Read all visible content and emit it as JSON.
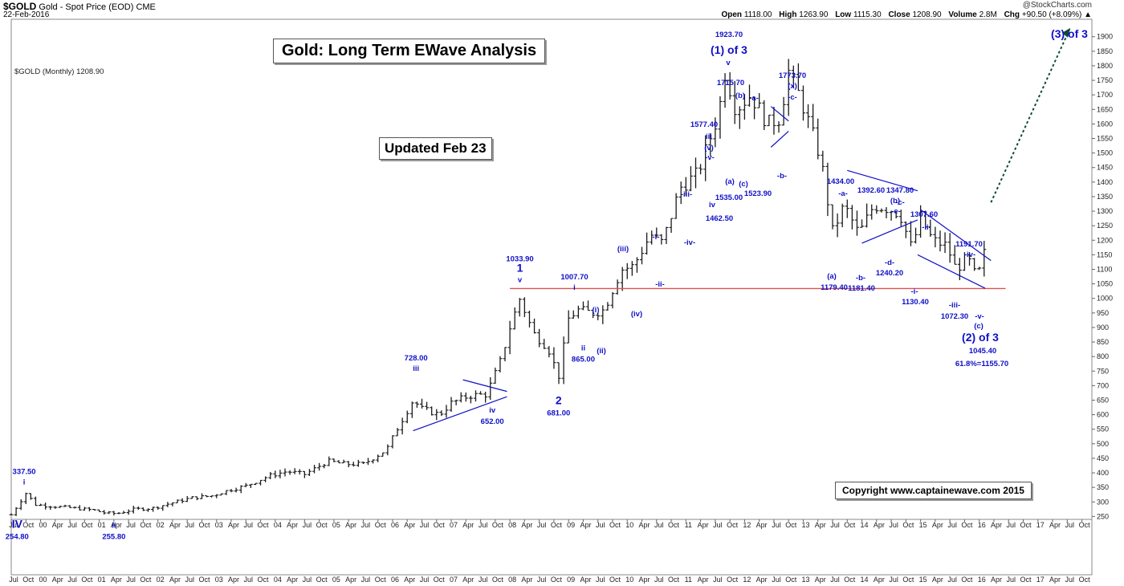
{
  "header": {
    "symbol": "$GOLD",
    "description": "Gold - Spot Price (EOD)",
    "exchange": "CME",
    "date": "22-Feb-2016",
    "watermark": "@StockCharts.com",
    "open_label": "Open",
    "open": "1118.00",
    "high_label": "High",
    "high": "1263.90",
    "low_label": "Low",
    "low": "1115.30",
    "close_label": "Close",
    "close": "1208.90",
    "volume_label": "Volume",
    "volume": "2.8M",
    "chg_label": "Chg",
    "chg": "+90.50 (+8.09%)",
    "chg_arrow": "▲"
  },
  "legend": "$GOLD (Monthly) 1208.90",
  "title_box": "Gold: Long Term EWave Analysis",
  "update_box": "Updated Feb 23",
  "copyright": "Copyright   www.captainewave.com 2015",
  "colors": {
    "price": "#1a1a1a",
    "annotation": "#1010c8",
    "support": "#e05050",
    "arrow": "#0d4d2e"
  },
  "chart_data": {
    "type": "ohlc",
    "title": "Gold: Long Term EWave Analysis",
    "ylabel": "",
    "ylim": [
      240,
      1960
    ],
    "y_ticks": [
      250,
      300,
      350,
      400,
      450,
      500,
      550,
      600,
      650,
      700,
      750,
      800,
      850,
      900,
      950,
      1000,
      1050,
      1100,
      1150,
      1200,
      1250,
      1300,
      1350,
      1400,
      1450,
      1500,
      1550,
      1600,
      1650,
      1700,
      1750,
      1800,
      1850,
      1900
    ],
    "x_axis_top": [
      "Jul",
      "Oct",
      "00",
      "Apr",
      "Jul",
      "Oct",
      "01",
      "Apr",
      "Jul",
      "Oct",
      "02",
      "Apr",
      "Jul",
      "Oct",
      "03",
      "Apr",
      "Jul",
      "Oct",
      "04",
      "Apr",
      "Jul",
      "Oct",
      "05",
      "Apr",
      "Jul",
      "Oct",
      "06",
      "Apr",
      "Jul",
      "Oct",
      "07",
      "Apr",
      "Jul",
      "Oct",
      "08",
      "Apr",
      "Jul",
      "Oct",
      "09",
      "Apr",
      "Jul",
      "Oct",
      "10",
      "Apr",
      "Jul",
      "Oct",
      "11",
      "Apr",
      "Jul",
      "Oct",
      "12",
      "Apr",
      "Jul",
      "Oct",
      "13",
      "Apr",
      "Jul",
      "Oct",
      "14",
      "Apr",
      "Jul",
      "Oct",
      "15",
      "Apr",
      "Jul",
      "Oct",
      "16",
      "Apr",
      "Jul",
      "Oct",
      "17",
      "Apr",
      "Jul",
      "Oct"
    ],
    "x_axis_bottom": [
      "Jul",
      "Oct",
      "00",
      "Apr",
      "Jul",
      "Oct",
      "01",
      "Apr",
      "Jul",
      "Oct",
      "02",
      "Apr",
      "Jul",
      "Oct",
      "03",
      "Apr",
      "Jul",
      "Oct",
      "04",
      "Apr",
      "Jul",
      "Oct",
      "05",
      "Apr",
      "Jul",
      "Oct",
      "06",
      "Apr",
      "Jul",
      "Oct",
      "07",
      "Apr",
      "Jul",
      "Oct",
      "08",
      "Apr",
      "Jul",
      "Oct",
      "09",
      "Apr",
      "Jul",
      "Oct",
      "10",
      "Apr",
      "Jul",
      "Oct",
      "11",
      "Apr",
      "Jul",
      "Oct",
      "12",
      "Apr",
      "Jul",
      "Oct",
      "13",
      "Apr",
      "Jul",
      "Oct",
      "14",
      "Apr",
      "Jul",
      "Oct",
      "15",
      "Apr",
      "Jul",
      "Oct",
      "16",
      "Apr",
      "Jul",
      "Oct",
      "17",
      "Apr",
      "Jul",
      "Oct"
    ],
    "x_range_years": [
      1999.5,
      2017.92
    ],
    "series_points": [
      [
        1999.5,
        256
      ],
      [
        1999.75,
        330
      ],
      [
        1999.92,
        290
      ],
      [
        2000.5,
        280
      ],
      [
        2000.9,
        272
      ],
      [
        2001.1,
        262
      ],
      [
        2001.3,
        260
      ],
      [
        2001.6,
        275
      ],
      [
        2001.9,
        278
      ],
      [
        2002.3,
        300
      ],
      [
        2002.6,
        315
      ],
      [
        2002.9,
        320
      ],
      [
        2003.2,
        340
      ],
      [
        2003.5,
        355
      ],
      [
        2003.9,
        390
      ],
      [
        2004.2,
        405
      ],
      [
        2004.5,
        395
      ],
      [
        2004.9,
        440
      ],
      [
        2005.2,
        430
      ],
      [
        2005.5,
        430
      ],
      [
        2005.9,
        480
      ],
      [
        2006.1,
        560
      ],
      [
        2006.35,
        650
      ],
      [
        2006.5,
        620
      ],
      [
        2006.8,
        600
      ],
      [
        2007.0,
        640
      ],
      [
        2007.3,
        665
      ],
      [
        2007.6,
        670
      ],
      [
        2007.85,
        790
      ],
      [
        2008.0,
        900
      ],
      [
        2008.17,
        1000
      ],
      [
        2008.4,
        880
      ],
      [
        2008.65,
        830
      ],
      [
        2008.83,
        730
      ],
      [
        2009.0,
        930
      ],
      [
        2009.15,
        960
      ],
      [
        2009.4,
        950
      ],
      [
        2009.6,
        960
      ],
      [
        2009.9,
        1100
      ],
      [
        2010.1,
        1110
      ],
      [
        2010.4,
        1220
      ],
      [
        2010.6,
        1190
      ],
      [
        2010.9,
        1380
      ],
      [
        2011.2,
        1430
      ],
      [
        2011.55,
        1630
      ],
      [
        2011.67,
        1780
      ],
      [
        2011.85,
        1650
      ],
      [
        2012.1,
        1700
      ],
      [
        2012.4,
        1600
      ],
      [
        2012.6,
        1620
      ],
      [
        2012.75,
        1780
      ],
      [
        2012.95,
        1690
      ],
      [
        2013.1,
        1600
      ],
      [
        2013.3,
        1480
      ],
      [
        2013.5,
        1230
      ],
      [
        2013.7,
        1320
      ],
      [
        2013.95,
        1220
      ],
      [
        2014.2,
        1320
      ],
      [
        2014.45,
        1310
      ],
      [
        2014.65,
        1290
      ],
      [
        2014.85,
        1170
      ],
      [
        2015.0,
        1280
      ],
      [
        2015.2,
        1200
      ],
      [
        2015.45,
        1180
      ],
      [
        2015.6,
        1100
      ],
      [
        2015.8,
        1140
      ],
      [
        2015.95,
        1070
      ],
      [
        2016.05,
        1115
      ],
      [
        2016.13,
        1209
      ]
    ],
    "support_level": 1033.9,
    "projection_target_label": "(3) of 3",
    "annotations": [
      {
        "x": 1999.6,
        "y": 254.8,
        "labels": [
          "IV",
          "254.80"
        ],
        "pos": "below"
      },
      {
        "x": 1999.72,
        "y": 337.5,
        "labels": [
          "337.50",
          "i"
        ],
        "pos": "above"
      },
      {
        "x": 2001.25,
        "y": 255.8,
        "labels": [
          "ii",
          "255.80"
        ],
        "pos": "below"
      },
      {
        "x": 2006.4,
        "y": 728,
        "labels": [
          "728.00",
          "iii"
        ],
        "pos": "above"
      },
      {
        "x": 2007.7,
        "y": 652,
        "labels": [
          "iv",
          "652.00"
        ],
        "pos": "below"
      },
      {
        "x": 2008.17,
        "y": 1033.9,
        "labels": [
          "1033.90",
          "1",
          "v"
        ],
        "pos": "above"
      },
      {
        "x": 2008.83,
        "y": 681,
        "labels": [
          "2",
          "681.00"
        ],
        "pos": "below"
      },
      {
        "x": 2009.1,
        "y": 1007.7,
        "labels": [
          "1007.70",
          "i"
        ],
        "pos": "above"
      },
      {
        "x": 2009.25,
        "y": 865,
        "labels": [
          "ii",
          "865.00"
        ],
        "pos": "below"
      }
    ],
    "annotation_texts": [
      "1923.70",
      "(1) of 3",
      "v",
      "1715.70",
      "(b)",
      "-a-",
      "1773.70",
      "(x)",
      "-c-",
      "1577.40",
      "iii",
      "(v)",
      "-v-",
      "(a)",
      "(c)",
      "-b-",
      "1535.00",
      "1523.90",
      "iv",
      "1462.50",
      "-iii-",
      "-iv-",
      "-i-",
      "-ii-",
      "(iii)",
      "(iv)",
      "(i)",
      "(ii)",
      "1434.00",
      "-a-",
      "1392.60",
      "-c-",
      "1347.80",
      "(b)",
      "-e-",
      "1307.60",
      "-ii-",
      "1191.70",
      "-iv-",
      "-d-",
      "1240.20",
      "-b-",
      "(a)",
      "1179.40",
      "1181.40",
      "-i-",
      "1130.40",
      "-iii-",
      "1072.30",
      "-v-",
      "(c)",
      "(2) of 3",
      "1045.40",
      "61.8%=1155.70"
    ]
  }
}
